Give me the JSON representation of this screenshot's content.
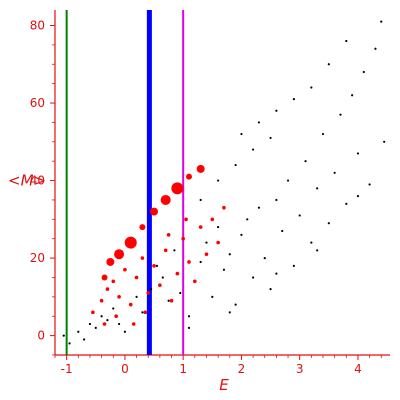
{
  "colors": {
    "axis": "#e01010",
    "text": "#e01010",
    "black_points": "#000000",
    "red_points": "#ff0000",
    "vline_green": "#008000",
    "vline_blue": "#0000ff",
    "vline_magenta": "#e000e0"
  },
  "chart_data": {
    "type": "scatter",
    "title": "",
    "xlabel": "E",
    "ylabel": "<M>",
    "xlim": [
      -1.2,
      4.55
    ],
    "ylim": [
      -5,
      84
    ],
    "x_ticks": [
      "-1",
      "0",
      "1",
      "2",
      "3",
      "4"
    ],
    "y_ticks": [
      "0",
      "20",
      "40",
      "60",
      "80"
    ],
    "grid": false,
    "vertical_lines": [
      {
        "x": -1.0,
        "color": "green",
        "width": "thin"
      },
      {
        "x": 0.42,
        "color": "blue",
        "width": "thick"
      },
      {
        "x": 1.0,
        "color": "magenta",
        "width": "thin"
      }
    ],
    "series": [
      {
        "color": "black",
        "marker": "small dot",
        "points": [
          [
            -1.05,
            0
          ],
          [
            -0.95,
            -2
          ],
          [
            -0.8,
            1
          ],
          [
            -0.7,
            -1
          ],
          [
            -0.6,
            3
          ],
          [
            -0.5,
            2
          ],
          [
            -0.4,
            5
          ],
          [
            -0.3,
            4
          ],
          [
            -0.2,
            7
          ],
          [
            -0.1,
            3
          ],
          [
            0.0,
            1
          ],
          [
            0.1,
            8
          ],
          [
            0.2,
            10
          ],
          [
            0.3,
            6
          ],
          [
            0.45,
            12
          ],
          [
            0.55,
            18
          ],
          [
            0.65,
            15
          ],
          [
            0.75,
            9
          ],
          [
            0.85,
            22
          ],
          [
            0.95,
            11
          ],
          [
            1.1,
            5
          ],
          [
            1.2,
            14
          ],
          [
            1.3,
            19
          ],
          [
            1.4,
            24
          ],
          [
            1.5,
            10
          ],
          [
            1.6,
            28
          ],
          [
            1.7,
            17
          ],
          [
            1.8,
            21
          ],
          [
            1.9,
            8
          ],
          [
            2.0,
            26
          ],
          [
            2.1,
            30
          ],
          [
            2.2,
            15
          ],
          [
            2.3,
            33
          ],
          [
            2.4,
            20
          ],
          [
            2.5,
            12
          ],
          [
            2.6,
            35
          ],
          [
            2.7,
            27
          ],
          [
            2.8,
            40
          ],
          [
            2.9,
            18
          ],
          [
            3.0,
            31
          ],
          [
            3.1,
            45
          ],
          [
            3.2,
            24
          ],
          [
            3.3,
            38
          ],
          [
            3.4,
            52
          ],
          [
            3.5,
            29
          ],
          [
            3.6,
            42
          ],
          [
            3.7,
            57
          ],
          [
            3.8,
            34
          ],
          [
            3.9,
            62
          ],
          [
            4.0,
            47
          ],
          [
            4.1,
            68
          ],
          [
            4.2,
            39
          ],
          [
            4.3,
            74
          ],
          [
            4.4,
            81
          ],
          [
            4.45,
            50
          ],
          [
            2.0,
            52
          ],
          [
            2.3,
            55
          ],
          [
            2.6,
            58
          ],
          [
            2.9,
            61
          ],
          [
            3.2,
            64
          ],
          [
            3.5,
            70
          ],
          [
            3.8,
            76
          ],
          [
            1.3,
            35
          ],
          [
            1.6,
            40
          ],
          [
            1.9,
            44
          ],
          [
            2.2,
            48
          ],
          [
            2.5,
            51
          ],
          [
            1.1,
            2
          ],
          [
            1.8,
            6
          ],
          [
            2.6,
            16
          ],
          [
            3.3,
            22
          ],
          [
            4.0,
            36
          ]
        ]
      },
      {
        "color": "red",
        "marker": "dot (size varies)",
        "points": [
          [
            -0.55,
            6
          ],
          [
            -0.4,
            9
          ],
          [
            -0.3,
            12
          ],
          [
            -0.2,
            14
          ],
          [
            -0.1,
            10
          ],
          [
            0.0,
            17
          ],
          [
            0.1,
            8
          ],
          [
            0.2,
            15
          ],
          [
            0.3,
            20
          ],
          [
            0.4,
            11
          ],
          [
            0.5,
            18
          ],
          [
            0.6,
            13
          ],
          [
            0.7,
            22
          ],
          [
            0.8,
            9
          ],
          [
            0.9,
            16
          ],
          [
            1.0,
            25
          ],
          [
            1.1,
            19
          ],
          [
            1.2,
            14
          ],
          [
            1.3,
            28
          ],
          [
            1.4,
            21
          ],
          [
            1.5,
            30
          ],
          [
            1.6,
            24
          ],
          [
            1.7,
            33
          ],
          [
            0.15,
            3
          ],
          [
            0.35,
            6
          ],
          [
            -0.35,
            3
          ],
          [
            -0.15,
            5
          ],
          [
            0.75,
            26
          ],
          [
            1.05,
            30
          ]
        ]
      },
      {
        "color": "red",
        "marker": "large dot",
        "points": [
          [
            -0.35,
            15
          ],
          [
            -0.25,
            19
          ],
          [
            -0.1,
            21
          ],
          [
            0.1,
            24
          ],
          [
            0.3,
            28
          ],
          [
            0.5,
            32
          ],
          [
            0.7,
            35
          ],
          [
            0.9,
            38
          ],
          [
            1.1,
            41
          ],
          [
            1.3,
            43
          ]
        ]
      }
    ]
  }
}
